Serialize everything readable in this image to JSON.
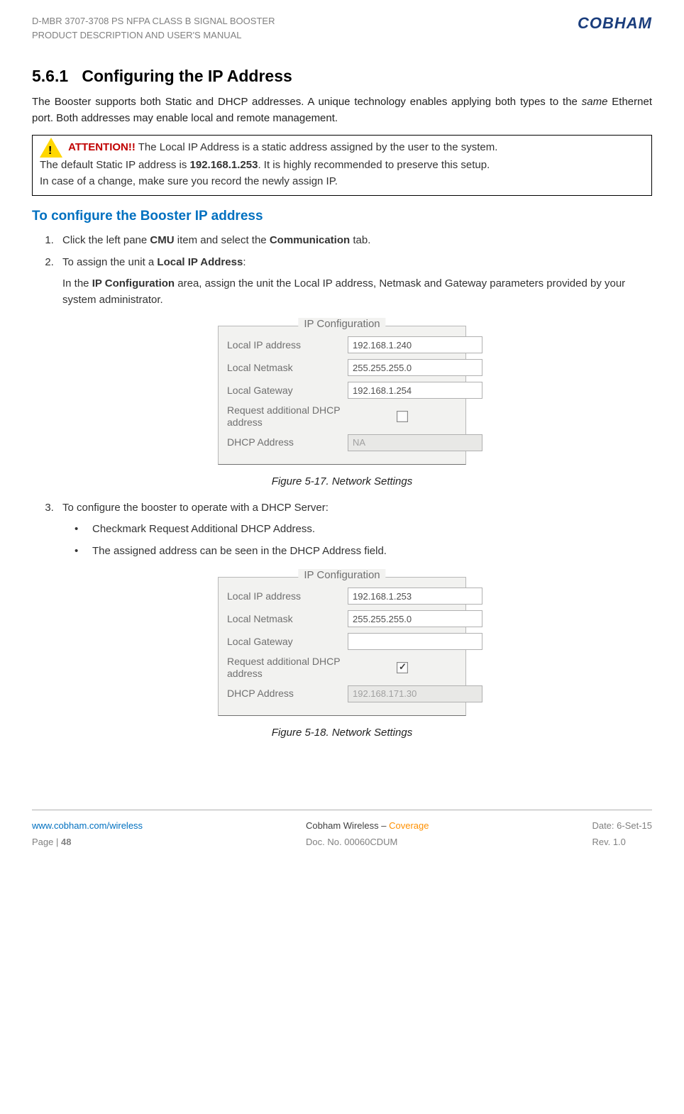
{
  "header": {
    "line1": "D-MBR 3707-3708 PS NFPA CLASS B SIGNAL BOOSTER",
    "line2": "PRODUCT DESCRIPTION AND USER'S MANUAL",
    "logo": "COBHAM"
  },
  "section": {
    "number": "5.6.1",
    "title": "Configuring the IP Address",
    "intro": "The Booster supports both Static and DHCP addresses. A unique technology enables applying both types to the ",
    "intro_italic": "same",
    "intro_end": " Ethernet port. Both addresses may enable local and remote management."
  },
  "attention": {
    "label": "ATTENTION!!",
    "text1": " The Local IP Address is a static address assigned by the user to the system.",
    "text2": "The default Static IP address is ",
    "ip": "192.168.1.253",
    "text3": ". It is highly recommended to preserve this setup.",
    "text4": "In case of a change, make sure you record the newly assign IP."
  },
  "subheading": "To configure the Booster IP address",
  "steps": {
    "step1_a": "Click the left pane ",
    "step1_cmu": "CMU",
    "step1_b": " item and select the ",
    "step1_comm": "Communication",
    "step1_c": " tab.",
    "step2_a": "To assign the unit a ",
    "step2_local": "Local IP Address",
    "step2_b": ":",
    "step2_desc_a": "In the ",
    "step2_desc_bold": "IP Configuration",
    "step2_desc_b": " area, assign the unit the Local IP address, Netmask and Gateway parameters provided by your system administrator.",
    "step3": "To configure the booster to operate with a DHCP Server:",
    "bullet1": "Checkmark Request Additional DHCP Address.",
    "bullet2": "The assigned address can be seen in the DHCP Address field."
  },
  "figure1": {
    "legend": "IP Configuration",
    "labels": {
      "local_ip": "Local IP address",
      "netmask": "Local Netmask",
      "gateway": "Local Gateway",
      "request": "Request additional DHCP address",
      "dhcp": "DHCP Address"
    },
    "values": {
      "local_ip": "192.168.1.240",
      "netmask": "255.255.255.0",
      "gateway": "192.168.1.254",
      "dhcp": "NA"
    },
    "checked": false,
    "caption": "Figure 5-17. Network Settings"
  },
  "figure2": {
    "legend": "IP Configuration",
    "labels": {
      "local_ip": "Local IP address",
      "netmask": "Local Netmask",
      "gateway": "Local Gateway",
      "request": "Request additional DHCP address",
      "dhcp": "DHCP Address"
    },
    "values": {
      "local_ip": "192.168.1.253",
      "netmask": "255.255.255.0",
      "gateway": "",
      "dhcp": "192.168.171.30"
    },
    "checked": true,
    "caption": "Figure 5-18. Network Settings"
  },
  "footer": {
    "col1_line1": "www.cobham.com/wireless",
    "col1_line2_a": "Page | ",
    "col1_line2_b": "48",
    "col2_line1_a": "Cobham Wireless",
    "col2_line1_b": " – ",
    "col2_line1_c": "Coverage",
    "col2_line2": "Doc. No. 00060CDUM",
    "col3_line1": "Date: 6-Set-15",
    "col3_line2": "Rev. 1.0"
  }
}
